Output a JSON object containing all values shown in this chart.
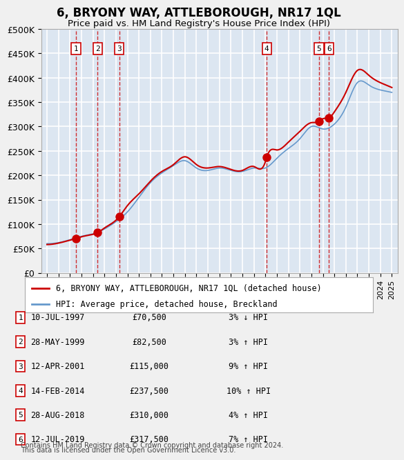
{
  "title": "6, BRYONY WAY, ATTLEBOROUGH, NR17 1QL",
  "subtitle": "Price paid vs. HM Land Registry's House Price Index (HPI)",
  "ylabel": "",
  "xlabel": "",
  "ylim": [
    0,
    500000
  ],
  "yticks": [
    0,
    50000,
    100000,
    150000,
    200000,
    250000,
    300000,
    350000,
    400000,
    450000,
    500000
  ],
  "ytick_labels": [
    "£0",
    "£50K",
    "£100K",
    "£150K",
    "£200K",
    "£250K",
    "£300K",
    "£350K",
    "£400K",
    "£450K",
    "£500K"
  ],
  "xlim_start": 1994.5,
  "xlim_end": 2025.5,
  "bg_color": "#dce6f1",
  "plot_bg_color": "#dce6f1",
  "grid_color": "#ffffff",
  "line_color_red": "#cc0000",
  "line_color_blue": "#6699cc",
  "transactions": [
    {
      "num": 1,
      "date": "10-JUL-1997",
      "price": 70500,
      "year": 1997.53,
      "hpi_pct": "3% ↓ HPI"
    },
    {
      "num": 2,
      "date": "28-MAY-1999",
      "price": 82500,
      "year": 1999.41,
      "hpi_pct": "3% ↑ HPI"
    },
    {
      "num": 3,
      "date": "12-APR-2001",
      "price": 115000,
      "year": 2001.28,
      "hpi_pct": "9% ↑ HPI"
    },
    {
      "num": 4,
      "date": "14-FEB-2014",
      "price": 237500,
      "year": 2014.12,
      "hpi_pct": "10% ↑ HPI"
    },
    {
      "num": 5,
      "date": "28-AUG-2018",
      "price": 310000,
      "year": 2018.66,
      "hpi_pct": "4% ↑ HPI"
    },
    {
      "num": 6,
      "date": "12-JUL-2019",
      "price": 317500,
      "year": 2019.53,
      "hpi_pct": "7% ↑ HPI"
    }
  ],
  "legend_line1": "6, BRYONY WAY, ATTLEBOROUGH, NR17 1QL (detached house)",
  "legend_line2": "HPI: Average price, detached house, Breckland",
  "footer1": "Contains HM Land Registry data © Crown copyright and database right 2024.",
  "footer2": "This data is licensed under the Open Government Licence v3.0."
}
